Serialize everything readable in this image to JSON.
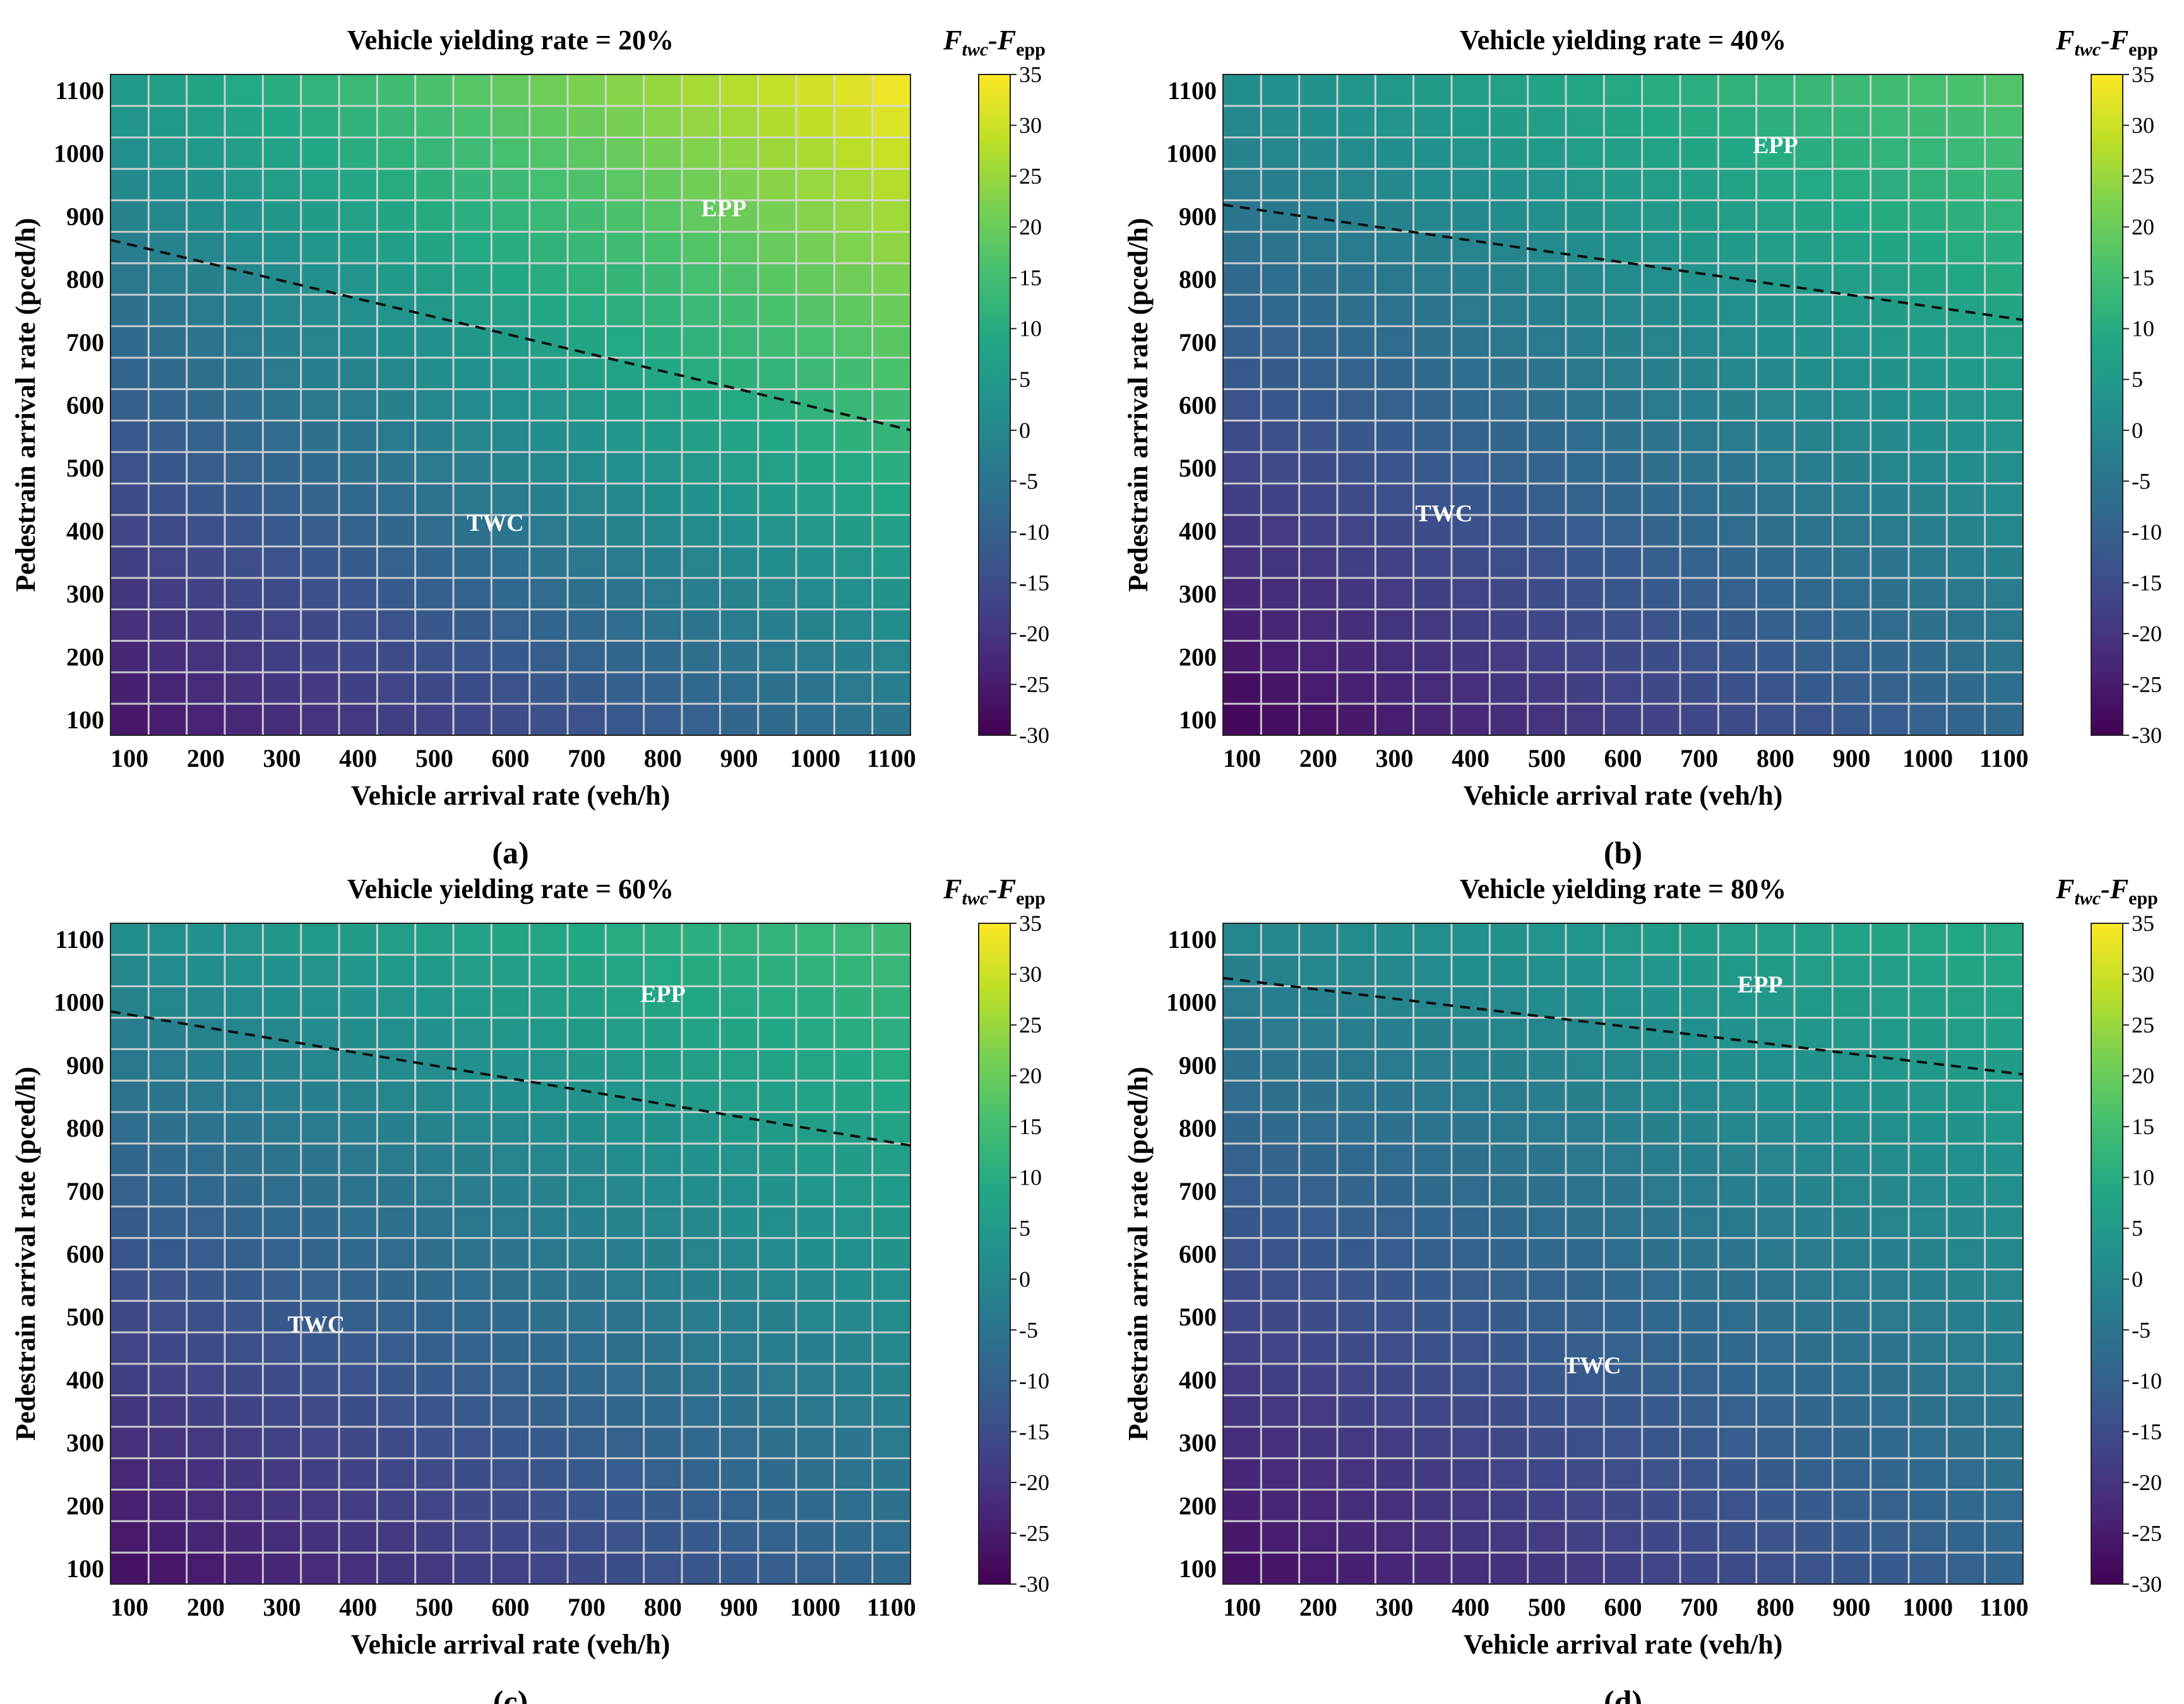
{
  "figure": {
    "colorbar_title_main": "F",
    "colorbar_title_sub1": "twc",
    "colorbar_title_sep": "-F",
    "colorbar_title_sub2": "epp"
  },
  "chart_data": [
    {
      "type": "heatmap",
      "panel": "(a)",
      "title": "Vehicle yielding rate = 20%",
      "xlabel": "Vehicle arrival rate (veh/h)",
      "ylabel": "Pedestrain arrival rate (pced/h)",
      "xticks": [
        "100",
        "200",
        "300",
        "400",
        "500",
        "600",
        "700",
        "800",
        "900",
        "1000",
        "1100"
      ],
      "yticks": [
        "100",
        "200",
        "300",
        "400",
        "500",
        "600",
        "700",
        "800",
        "900",
        "1000",
        "1100"
      ],
      "xlim": [
        75,
        1125
      ],
      "ylim": [
        75,
        1125
      ],
      "grid_cells": [
        21,
        21
      ],
      "value_model": {
        "description": "F_twc - F_epp at (veh, ped)",
        "min": -27,
        "max": 35
      },
      "corners": {
        "low_low": -27,
        "high_low": -5,
        "low_high": 5,
        "high_high": 35
      },
      "threshold_line": {
        "x": [
          75,
          1125
        ],
        "y": [
          862,
          560
        ],
        "style": "dashed"
      },
      "region_labels": [
        {
          "text": "EPP",
          "x": 880,
          "y": 900
        },
        {
          "text": "TWC",
          "x": 580,
          "y": 400
        }
      ],
      "colorbar": {
        "min": -30,
        "max": 35,
        "ticks": [
          "-30",
          "-25",
          "-20",
          "-15",
          "-10",
          "-5",
          "0",
          "5",
          "10",
          "15",
          "20",
          "25",
          "30",
          "35"
        ]
      }
    },
    {
      "type": "heatmap",
      "panel": "(b)",
      "title": "Vehicle yielding rate = 40%",
      "xlabel": "Vehicle arrival rate (veh/h)",
      "ylabel": "Pedestrain arrival rate (pced/h)",
      "xticks": [
        "100",
        "200",
        "300",
        "400",
        "500",
        "600",
        "700",
        "800",
        "900",
        "1000",
        "1100"
      ],
      "yticks": [
        "100",
        "200",
        "300",
        "400",
        "500",
        "600",
        "700",
        "800",
        "900",
        "1000",
        "1100"
      ],
      "xlim": [
        75,
        1125
      ],
      "ylim": [
        75,
        1125
      ],
      "grid_cells": [
        21,
        21
      ],
      "value_model": {
        "description": "F_twc - F_epp at (veh, ped)",
        "min": -30,
        "max": 18
      },
      "corners": {
        "low_low": -30,
        "high_low": -8,
        "low_high": 2,
        "high_high": 18
      },
      "threshold_line": {
        "x": [
          75,
          1125
        ],
        "y": [
          918,
          735
        ],
        "style": "dashed"
      },
      "region_labels": [
        {
          "text": "EPP",
          "x": 800,
          "y": 1000
        },
        {
          "text": "TWC",
          "x": 365,
          "y": 415
        }
      ],
      "colorbar": {
        "min": -30,
        "max": 35,
        "ticks": [
          "-30",
          "-25",
          "-20",
          "-15",
          "-10",
          "-5",
          "0",
          "5",
          "10",
          "15",
          "20",
          "25",
          "30",
          "35"
        ]
      }
    },
    {
      "type": "heatmap",
      "panel": "(c)",
      "title": "Vehicle yielding rate = 60%",
      "xlabel": "Vehicle arrival rate (veh/h)",
      "ylabel": "Pedestrain arrival rate (pced/h)",
      "xticks": [
        "100",
        "200",
        "300",
        "400",
        "500",
        "600",
        "700",
        "800",
        "900",
        "1000",
        "1100"
      ],
      "yticks": [
        "100",
        "200",
        "300",
        "400",
        "500",
        "600",
        "700",
        "800",
        "900",
        "1000",
        "1100"
      ],
      "xlim": [
        75,
        1125
      ],
      "ylim": [
        75,
        1125
      ],
      "grid_cells": [
        21,
        21
      ],
      "value_model": {
        "description": "F_twc - F_epp at (veh, ped)",
        "min": -28,
        "max": 15
      },
      "corners": {
        "low_low": -28,
        "high_low": -8,
        "low_high": 2,
        "high_high": 15
      },
      "threshold_line": {
        "x": [
          75,
          1125
        ],
        "y": [
          985,
          772
        ],
        "style": "dashed"
      },
      "region_labels": [
        {
          "text": "EPP",
          "x": 800,
          "y": 1000
        },
        {
          "text": "TWC",
          "x": 345,
          "y": 475
        }
      ],
      "colorbar": {
        "min": -30,
        "max": 35,
        "ticks": [
          "-30",
          "-25",
          "-20",
          "-15",
          "-10",
          "-5",
          "0",
          "5",
          "10",
          "15",
          "20",
          "25",
          "30",
          "35"
        ]
      }
    },
    {
      "type": "heatmap",
      "panel": "(d)",
      "title": "Vehicle yielding rate = 80%",
      "xlabel": "Vehicle arrival rate (veh/h)",
      "ylabel": "Pedestrain arrival rate (pced/h)",
      "xticks": [
        "100",
        "200",
        "300",
        "400",
        "500",
        "600",
        "700",
        "800",
        "900",
        "1000",
        "1100"
      ],
      "yticks": [
        "100",
        "200",
        "300",
        "400",
        "500",
        "600",
        "700",
        "800",
        "900",
        "1000",
        "1100"
      ],
      "xlim": [
        75,
        1125
      ],
      "ylim": [
        75,
        1125
      ],
      "grid_cells": [
        21,
        21
      ],
      "value_model": {
        "description": "F_twc - F_epp at (veh, ped)",
        "min": -28,
        "max": 10
      },
      "corners": {
        "low_low": -28,
        "high_low": -9,
        "low_high": 0,
        "high_high": 10
      },
      "threshold_line": {
        "x": [
          75,
          1125
        ],
        "y": [
          1038,
          885
        ],
        "style": "dashed"
      },
      "region_labels": [
        {
          "text": "EPP",
          "x": 780,
          "y": 1015
        },
        {
          "text": "TWC",
          "x": 560,
          "y": 410
        }
      ],
      "colorbar": {
        "min": -30,
        "max": 35,
        "ticks": [
          "-30",
          "-25",
          "-20",
          "-15",
          "-10",
          "-5",
          "0",
          "5",
          "10",
          "15",
          "20",
          "25",
          "30",
          "35"
        ]
      }
    }
  ]
}
